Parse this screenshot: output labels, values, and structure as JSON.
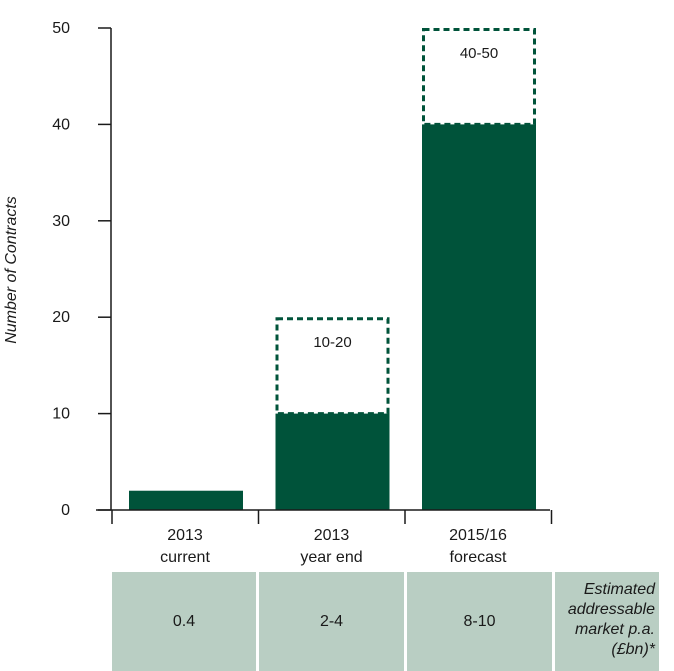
{
  "chart_data": {
    "type": "bar",
    "ylabel": "Number of Contracts",
    "ylim": [
      0,
      50
    ],
    "yticks": [
      0,
      10,
      20,
      30,
      40,
      50
    ],
    "categories": [
      {
        "line1": "2013",
        "line2": "current"
      },
      {
        "line1": "2013",
        "line2": "year end"
      },
      {
        "line1": "2015/16",
        "line2": "forecast"
      }
    ],
    "values": [
      2,
      10,
      40
    ],
    "ranges": [
      {
        "low": null,
        "high": null,
        "label": ""
      },
      {
        "low": 10,
        "high": 20,
        "label": "10-20"
      },
      {
        "low": 40,
        "high": 50,
        "label": "40-50"
      }
    ],
    "colors": {
      "bar": "#00533a",
      "range_border": "#00533a",
      "axis": "#1a1a1a"
    }
  },
  "market_table": {
    "values": [
      "0.4",
      "2-4",
      "8-10"
    ],
    "caption_lines": [
      "Estimated",
      "addressable",
      "market p.a.",
      "(£bn)*"
    ],
    "background": "#b9cec3"
  }
}
